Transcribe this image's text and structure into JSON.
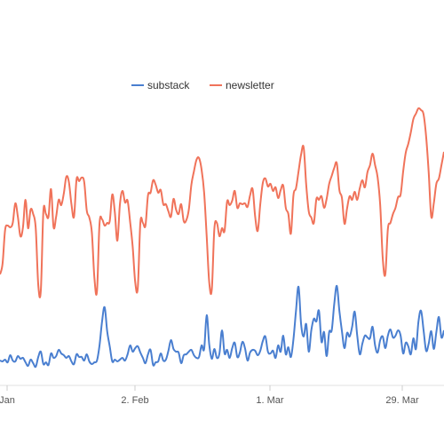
{
  "chart_data": {
    "type": "line",
    "title": "",
    "xlabel": "",
    "ylabel": "",
    "x_ticks": [
      "Jan",
      "2. Feb",
      "1. Mar",
      "29. Mar"
    ],
    "legend_position": "top-center",
    "grid": false,
    "series": [
      {
        "name": "substack",
        "color": "#4a7fd0",
        "values": [
          28,
          27,
          29,
          26,
          34,
          28,
          27,
          33,
          30,
          31,
          26,
          22,
          29,
          25,
          21,
          32,
          38,
          24,
          26,
          23,
          36,
          31,
          33,
          40,
          36,
          34,
          31,
          33,
          27,
          24,
          35,
          32,
          32,
          28,
          35,
          27,
          24,
          26,
          28,
          45,
          72,
          88,
          61,
          44,
          27,
          29,
          27,
          29,
          31,
          28,
          35,
          45,
          38,
          42,
          44,
          37,
          31,
          25,
          35,
          40,
          23,
          26,
          27,
          36,
          28,
          29,
          39,
          51,
          41,
          38,
          37,
          25,
          34,
          35,
          38,
          40,
          34,
          31,
          32,
          45,
          41,
          79,
          46,
          30,
          41,
          31,
          36,
          62,
          36,
          40,
          31,
          42,
          48,
          32,
          37,
          49,
          42,
          28,
          37,
          40,
          39,
          34,
          39,
          50,
          55,
          38,
          36,
          39,
          31,
          45,
          38,
          56,
          35,
          43,
          32,
          52,
          84,
          111,
          69,
          55,
          69,
          38,
          62,
          75,
          72,
          84,
          49,
          60,
          33,
          60,
          62,
          92,
          112,
          84,
          61,
          42,
          59,
          55,
          66,
          83,
          56,
          35,
          47,
          56,
          54,
          53,
          66,
          45,
          37,
          51,
          55,
          42,
          56,
          63,
          54,
          56,
          62,
          56,
          36,
          48,
          44,
          35,
          53,
          41,
          72,
          84,
          62,
          39,
          47,
          61,
          41,
          60,
          77,
          54,
          62
        ]
      },
      {
        "name": "newsletter",
        "color": "#f0735a",
        "values": [
          125,
          137,
          175,
          180,
          178,
          183,
          205,
          190,
          168,
          178,
          209,
          177,
          198,
          193,
          177,
          113,
          107,
          196,
          193,
          190,
          221,
          178,
          190,
          209,
          203,
          216,
          235,
          229,
          204,
          190,
          232,
          230,
          234,
          229,
          197,
          189,
          172,
          121,
          106,
          182,
          187,
          180,
          183,
          185,
          215,
          195,
          163,
          204,
          219,
          206,
          208,
          184,
          156,
          116,
          110,
          183,
          183,
          180,
          214,
          217,
          231,
          226,
          217,
          220,
          204,
          204,
          196,
          190,
          210,
          198,
          193,
          204,
          185,
          186,
          198,
          226,
          241,
          254,
          256,
          243,
          217,
          168,
          116,
          108,
          176,
          183,
          168,
          177,
          174,
          207,
          203,
          208,
          219,
          200,
          205,
          204,
          205,
          201,
          214,
          221,
          190,
          174,
          204,
          228,
          233,
          224,
          227,
          219,
          223,
          211,
          220,
          225,
          200,
          193,
          171,
          214,
          222,
          241,
          260,
          268,
          226,
          196,
          189,
          183,
          210,
          209,
          213,
          200,
          210,
          227,
          236,
          245,
          250,
          220,
          211,
          182,
          199,
          213,
          209,
          218,
          209,
          222,
          231,
          223,
          240,
          248,
          261,
          248,
          234,
          203,
          143,
          125,
          176,
          183,
          193,
          200,
          212,
          215,
          241,
          262,
          272,
          285,
          300,
          306,
          312,
          310,
          305,
          280,
          240,
          190,
          205,
          227,
          233,
          248,
          263
        ]
      }
    ]
  }
}
